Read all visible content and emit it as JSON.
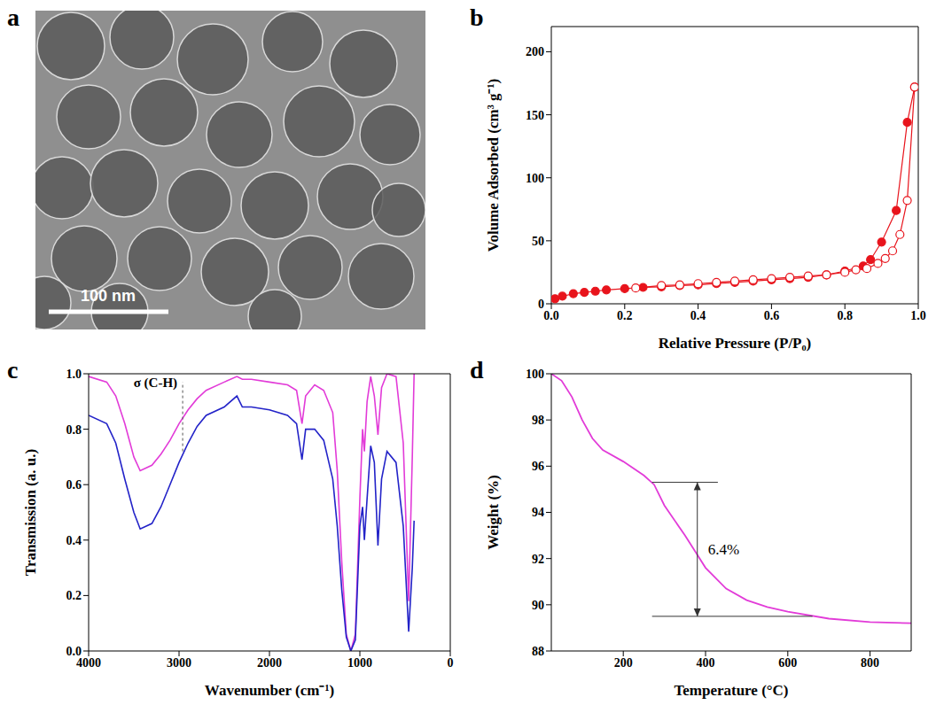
{
  "chart_data": [
    {
      "panel": "a",
      "type": "image",
      "annotations": [
        "100 nm"
      ]
    },
    {
      "panel": "b",
      "type": "scatter",
      "x_label": "Relative Pressure (P/P₀)",
      "y_label": "Volume Adsorbed (cm³ g⁻¹)",
      "xlim": [
        0,
        1
      ],
      "xticks": [
        {
          "value": 0,
          "label": "0.0"
        },
        {
          "value": 0.2,
          "label": "0.2"
        },
        {
          "value": 0.4,
          "label": "0.4"
        },
        {
          "value": 0.6,
          "label": "0.6"
        },
        {
          "value": 0.8,
          "label": "0.8"
        },
        {
          "value": 1,
          "label": "1.0"
        }
      ],
      "ylim": [
        0,
        220
      ],
      "yticks": [
        0,
        50,
        100,
        150,
        200
      ],
      "series": [
        {
          "color": "#e8141c",
          "marker": "circle",
          "line_style": "solid",
          "x": [
            0.01,
            0.03,
            0.06,
            0.09,
            0.12,
            0.15,
            0.2,
            0.25,
            0.3,
            0.35,
            0.4,
            0.45,
            0.5,
            0.55,
            0.6,
            0.65,
            0.7,
            0.75,
            0.8,
            0.85,
            0.87,
            0.9,
            0.94,
            0.97,
            0.99
          ],
          "values": [
            4,
            6,
            8,
            9,
            10,
            11,
            12,
            13,
            13.5,
            14.5,
            15,
            16,
            17,
            18,
            19,
            20,
            21,
            23,
            26,
            30,
            35,
            49,
            74,
            144,
            172
          ]
        },
        {
          "color": "#e8141c",
          "marker": "open circle",
          "line_style": "solid",
          "x": [
            0.99,
            0.97,
            0.95,
            0.93,
            0.91,
            0.89,
            0.86,
            0.83,
            0.8,
            0.75,
            0.7,
            0.65,
            0.6,
            0.55,
            0.5,
            0.45,
            0.4,
            0.35,
            0.3,
            0.23
          ],
          "values": [
            172,
            82,
            55,
            42,
            36,
            32,
            28,
            27,
            25,
            23,
            22,
            21,
            20,
            19,
            18,
            17,
            16,
            15,
            14.5,
            12.5
          ]
        }
      ]
    },
    {
      "panel": "c",
      "type": "line",
      "x_label": "Wavenumber (cm⁻¹)",
      "y_label": "Transmission (a. u.)",
      "xlim": [
        4000,
        0
      ],
      "xticks": [
        4000,
        3000,
        2000,
        1000,
        0
      ],
      "ylim": [
        0,
        1
      ],
      "yticks": [
        {
          "value": 0,
          "label": "0.0"
        },
        {
          "value": 0.2,
          "label": "0.2"
        },
        {
          "value": 0.4,
          "label": "0.4"
        },
        {
          "value": 0.6,
          "label": "0.6"
        },
        {
          "value": 0.8,
          "label": "0.8"
        },
        {
          "value": 1,
          "label": "1.0"
        }
      ],
      "annotation": {
        "text": "σ (C-H)",
        "x": 2960,
        "y_from": 0.72,
        "y_to": 0.97
      },
      "x": [
        4000,
        3800,
        3700,
        3600,
        3500,
        3430,
        3300,
        3200,
        3100,
        3000,
        2900,
        2800,
        2700,
        2500,
        2360,
        2300,
        2200,
        2000,
        1800,
        1700,
        1640,
        1600,
        1500,
        1400,
        1300,
        1250,
        1200,
        1150,
        1100,
        1050,
        1000,
        970,
        950,
        920,
        880,
        840,
        800,
        760,
        700,
        600,
        520,
        460,
        420,
        400
      ],
      "series": [
        {
          "color": "#e23bd8",
          "values": [
            0.99,
            0.97,
            0.92,
            0.82,
            0.7,
            0.65,
            0.67,
            0.71,
            0.76,
            0.82,
            0.87,
            0.91,
            0.94,
            0.97,
            0.99,
            0.98,
            0.98,
            0.97,
            0.96,
            0.94,
            0.82,
            0.92,
            0.96,
            0.94,
            0.86,
            0.65,
            0.32,
            0.06,
            0.0,
            0.06,
            0.55,
            0.8,
            0.72,
            0.9,
            0.99,
            0.92,
            0.78,
            0.95,
            1.0,
            0.99,
            0.75,
            0.18,
            0.7,
            1.0
          ]
        },
        {
          "color": "#2323c8",
          "values": [
            0.85,
            0.82,
            0.75,
            0.62,
            0.5,
            0.44,
            0.46,
            0.52,
            0.6,
            0.68,
            0.75,
            0.81,
            0.85,
            0.88,
            0.92,
            0.88,
            0.88,
            0.87,
            0.85,
            0.82,
            0.69,
            0.8,
            0.8,
            0.76,
            0.62,
            0.45,
            0.22,
            0.05,
            0.0,
            0.04,
            0.45,
            0.52,
            0.4,
            0.55,
            0.74,
            0.68,
            0.38,
            0.62,
            0.72,
            0.68,
            0.45,
            0.07,
            0.3,
            0.47
          ]
        }
      ]
    },
    {
      "panel": "d",
      "type": "line",
      "x_label": "Temperature (°C)",
      "y_label": "Weight (%)",
      "xlim": [
        25,
        900
      ],
      "xticks": [
        200,
        400,
        600,
        800
      ],
      "ylim": [
        88,
        100
      ],
      "yticks": [
        88,
        90,
        92,
        94,
        96,
        98,
        100
      ],
      "annotation": {
        "text": "6.4%",
        "x": 380,
        "y_from": 95.3,
        "y_to": 89.5,
        "upper_span": [
          270,
          430
        ],
        "lower_span": [
          270,
          660
        ]
      },
      "x": [
        25,
        50,
        75,
        100,
        125,
        150,
        200,
        250,
        275,
        300,
        350,
        375,
        400,
        450,
        500,
        550,
        600,
        700,
        800,
        900
      ],
      "series": [
        {
          "color": "#e23bd8",
          "values": [
            100,
            99.7,
            99,
            98,
            97.2,
            96.7,
            96.2,
            95.6,
            95.2,
            94.3,
            93,
            92.3,
            91.6,
            90.7,
            90.2,
            89.9,
            89.7,
            89.4,
            89.25,
            89.2
          ]
        }
      ]
    }
  ]
}
